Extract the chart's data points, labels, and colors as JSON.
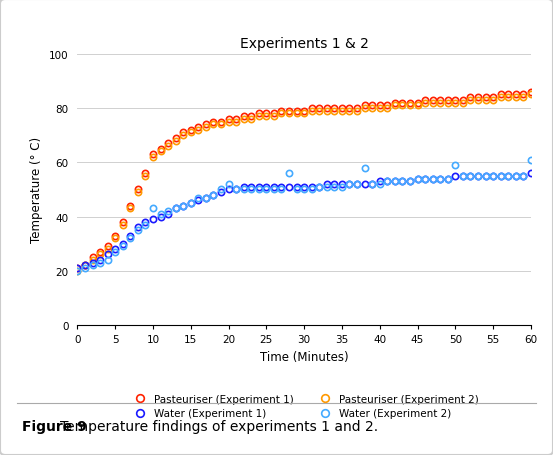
{
  "title": "Experiments 1 & 2",
  "xlabel": "Time (Minutes)",
  "ylabel": "Temperature (° C)",
  "xlim": [
    0,
    60
  ],
  "ylim": [
    0,
    100
  ],
  "xticks": [
    0,
    5,
    10,
    15,
    20,
    25,
    30,
    35,
    40,
    45,
    50,
    55,
    60
  ],
  "yticks": [
    0,
    20,
    40,
    60,
    80,
    100
  ],
  "background_color": "#ffffff",
  "caption_bold": "Figure 9 ",
  "caption_rest": "Temperature findings of experiments 1 and 2.",
  "pasteuriser_exp1_x": [
    0,
    1,
    2,
    3,
    4,
    5,
    6,
    7,
    8,
    9,
    10,
    11,
    12,
    13,
    14,
    15,
    16,
    17,
    18,
    19,
    20,
    21,
    22,
    23,
    24,
    25,
    26,
    27,
    28,
    29,
    30,
    31,
    32,
    33,
    34,
    35,
    36,
    37,
    38,
    39,
    40,
    41,
    42,
    43,
    44,
    45,
    46,
    47,
    48,
    49,
    50,
    51,
    52,
    53,
    54,
    55,
    56,
    57,
    58,
    59,
    60
  ],
  "pasteuriser_exp1_y": [
    21,
    22,
    25,
    27,
    29,
    33,
    38,
    44,
    50,
    56,
    63,
    65,
    67,
    69,
    71,
    72,
    73,
    74,
    75,
    75,
    76,
    76,
    77,
    77,
    78,
    78,
    78,
    79,
    79,
    79,
    79,
    80,
    80,
    80,
    80,
    80,
    80,
    80,
    81,
    81,
    81,
    81,
    82,
    82,
    82,
    82,
    83,
    83,
    83,
    83,
    83,
    83,
    84,
    84,
    84,
    84,
    85,
    85,
    85,
    85,
    86
  ],
  "pasteuriser_exp2_x": [
    0,
    1,
    2,
    3,
    4,
    5,
    6,
    7,
    8,
    9,
    10,
    11,
    12,
    13,
    14,
    15,
    16,
    17,
    18,
    19,
    20,
    21,
    22,
    23,
    24,
    25,
    26,
    27,
    28,
    29,
    30,
    31,
    32,
    33,
    34,
    35,
    36,
    37,
    38,
    39,
    40,
    41,
    42,
    43,
    44,
    45,
    46,
    47,
    48,
    49,
    50,
    51,
    52,
    53,
    54,
    55,
    56,
    57,
    58,
    59,
    60
  ],
  "pasteuriser_exp2_y": [
    20,
    22,
    24,
    26,
    28,
    32,
    37,
    43,
    49,
    55,
    62,
    64,
    66,
    68,
    70,
    71,
    72,
    73,
    74,
    74,
    75,
    75,
    76,
    76,
    77,
    77,
    77,
    78,
    78,
    78,
    78,
    79,
    79,
    79,
    79,
    79,
    79,
    79,
    80,
    80,
    80,
    80,
    81,
    81,
    81,
    81,
    82,
    82,
    82,
    82,
    82,
    82,
    83,
    83,
    83,
    83,
    84,
    84,
    84,
    84,
    85
  ],
  "water_exp1_x": [
    0,
    1,
    2,
    3,
    4,
    5,
    6,
    7,
    8,
    9,
    10,
    11,
    12,
    13,
    14,
    15,
    16,
    17,
    18,
    19,
    20,
    21,
    22,
    23,
    24,
    25,
    26,
    27,
    28,
    29,
    30,
    31,
    32,
    33,
    34,
    35,
    36,
    37,
    38,
    39,
    40,
    41,
    42,
    43,
    44,
    45,
    46,
    47,
    48,
    49,
    50,
    51,
    52,
    53,
    54,
    55,
    56,
    57,
    58,
    59,
    60
  ],
  "water_exp1_y": [
    21,
    22,
    23,
    24,
    26,
    28,
    30,
    33,
    36,
    38,
    39,
    40,
    41,
    43,
    44,
    45,
    46,
    47,
    48,
    49,
    50,
    50,
    51,
    51,
    51,
    51,
    51,
    51,
    51,
    51,
    51,
    51,
    51,
    52,
    52,
    52,
    52,
    52,
    52,
    52,
    53,
    53,
    53,
    53,
    53,
    54,
    54,
    54,
    54,
    54,
    55,
    55,
    55,
    55,
    55,
    55,
    55,
    55,
    55,
    55,
    56
  ],
  "water_exp2_x": [
    0,
    1,
    2,
    3,
    4,
    5,
    6,
    7,
    8,
    9,
    10,
    11,
    12,
    13,
    14,
    15,
    16,
    17,
    18,
    19,
    20,
    21,
    22,
    23,
    24,
    25,
    26,
    27,
    28,
    29,
    30,
    31,
    32,
    33,
    34,
    35,
    36,
    37,
    38,
    39,
    40,
    41,
    42,
    43,
    44,
    45,
    46,
    47,
    48,
    49,
    50,
    51,
    52,
    53,
    54,
    55,
    56,
    57,
    58,
    59,
    60
  ],
  "water_exp2_y": [
    20,
    21,
    22,
    23,
    24,
    27,
    29,
    32,
    35,
    37,
    43,
    41,
    42,
    43,
    44,
    45,
    47,
    47,
    48,
    50,
    52,
    50,
    50,
    50,
    50,
    50,
    50,
    50,
    56,
    50,
    50,
    50,
    51,
    51,
    51,
    51,
    52,
    52,
    58,
    52,
    52,
    53,
    53,
    53,
    53,
    54,
    54,
    54,
    54,
    54,
    59,
    55,
    55,
    55,
    55,
    55,
    55,
    55,
    55,
    55,
    61
  ],
  "color_past_exp1": "#ff2200",
  "color_past_exp2": "#ff9900",
  "color_water_exp1": "#1a1aff",
  "color_water_exp2": "#44aaff",
  "legend_labels": [
    "Pasteuriser (Experiment 1)",
    "Pasteuriser (Experiment 2)",
    "Water (Experiment 1)",
    "Water (Experiment 2)"
  ]
}
